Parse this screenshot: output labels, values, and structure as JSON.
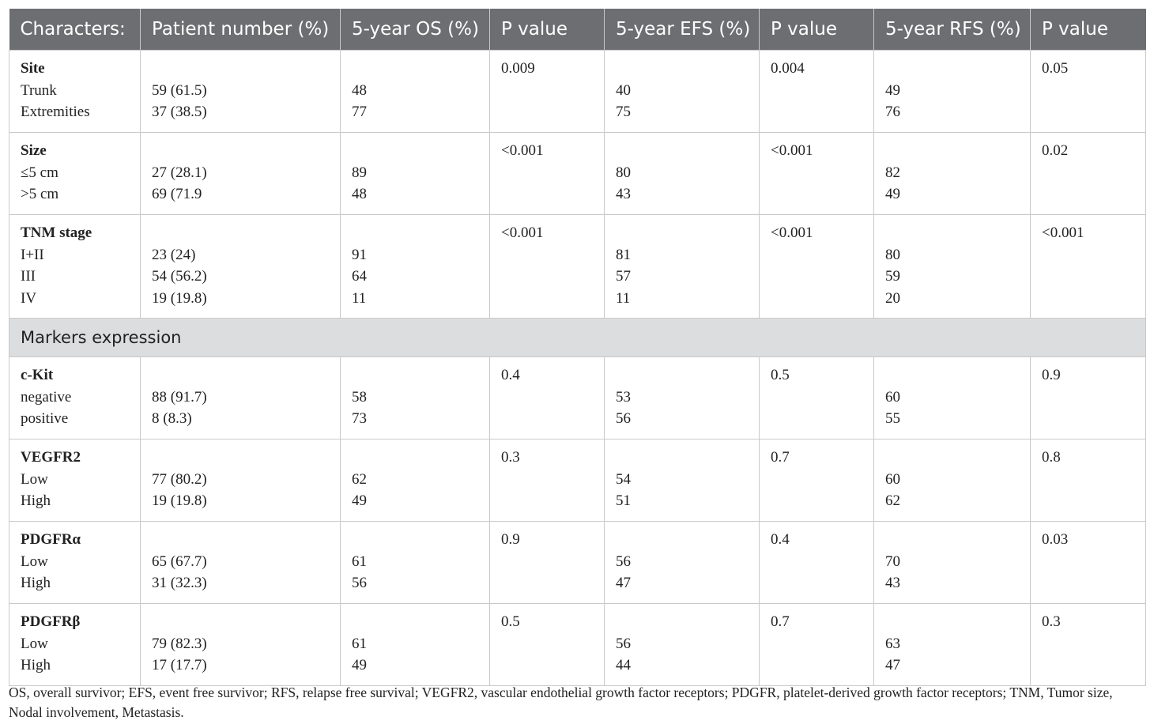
{
  "headers": [
    "Characters:",
    "Patient number (%)",
    "5-year OS (%)",
    "P value",
    "5-year EFS (%)",
    "P value",
    "5-year RFS (%)",
    "P value"
  ],
  "groups1": [
    {
      "title": "Site",
      "rows": [
        {
          "label": "Trunk",
          "n": "59 (61.5)",
          "os": "48",
          "efs": "40",
          "rfs": "49"
        },
        {
          "label": "Extremities",
          "n": "37 (38.5)",
          "os": "77",
          "efs": "75",
          "rfs": "76"
        }
      ],
      "p_os": "0.009",
      "p_efs": "0.004",
      "p_rfs": "0.05"
    },
    {
      "title": "Size",
      "rows": [
        {
          "label": "≤5 cm",
          "n": "27 (28.1)",
          "os": "89",
          "efs": "80",
          "rfs": "82"
        },
        {
          "label": ">5 cm",
          "n": "69 (71.9",
          "os": "48",
          "efs": "43",
          "rfs": "49"
        }
      ],
      "p_os": "<0.001",
      "p_efs": "<0.001",
      "p_rfs": "0.02"
    },
    {
      "title": "TNM stage",
      "rows": [
        {
          "label": "I+II",
          "n": "23 (24)",
          "os": "91",
          "efs": "81",
          "rfs": "80"
        },
        {
          "label": "III",
          "n": "54 (56.2)",
          "os": "64",
          "efs": "57",
          "rfs": "59"
        },
        {
          "label": "IV",
          "n": "19 (19.8)",
          "os": "11",
          "efs": "11",
          "rfs": "20"
        }
      ],
      "p_os": "<0.001",
      "p_efs": "<0.001",
      "p_rfs": "<0.001"
    }
  ],
  "section_label": "Markers expression",
  "groups2": [
    {
      "title": "c-Kit",
      "rows": [
        {
          "label": "negative",
          "n": "88 (91.7)",
          "os": "58",
          "efs": "53",
          "rfs": "60"
        },
        {
          "label": "positive",
          "n": "8 (8.3)",
          "os": "73",
          "efs": "56",
          "rfs": "55"
        }
      ],
      "p_os": "0.4",
      "p_efs": "0.5",
      "p_rfs": "0.9"
    },
    {
      "title": "VEGFR2",
      "rows": [
        {
          "label": "Low",
          "n": "77 (80.2)",
          "os": "62",
          "efs": "54",
          "rfs": "60"
        },
        {
          "label": "High",
          "n": "19 (19.8)",
          "os": "49",
          "efs": "51",
          "rfs": "62"
        }
      ],
      "p_os": "0.3",
      "p_efs": "0.7",
      "p_rfs": "0.8"
    },
    {
      "title": "PDGFRα",
      "rows": [
        {
          "label": "Low",
          "n": "65 (67.7)",
          "os": "61",
          "efs": "56",
          "rfs": "70"
        },
        {
          "label": "High",
          "n": "31 (32.3)",
          "os": "56",
          "efs": "47",
          "rfs": "43"
        }
      ],
      "p_os": "0.9",
      "p_efs": "0.4",
      "p_rfs": "0.03"
    },
    {
      "title": "PDGFRβ",
      "rows": [
        {
          "label": "Low",
          "n": "79 (82.3)",
          "os": "61",
          "efs": "56",
          "rfs": "63"
        },
        {
          "label": "High",
          "n": "17 (17.7)",
          "os": "49",
          "efs": "44",
          "rfs": "47"
        }
      ],
      "p_os": "0.5",
      "p_efs": "0.7",
      "p_rfs": "0.3"
    }
  ],
  "footnote": "OS, overall survivor; EFS, event free survivor; RFS, relapse free survival; VEGFR2, vascular endothelial growth factor receptors; PDGFR, platelet-derived growth factor receptors; TNM, Tumor size, Nodal involvement, Metastasis."
}
